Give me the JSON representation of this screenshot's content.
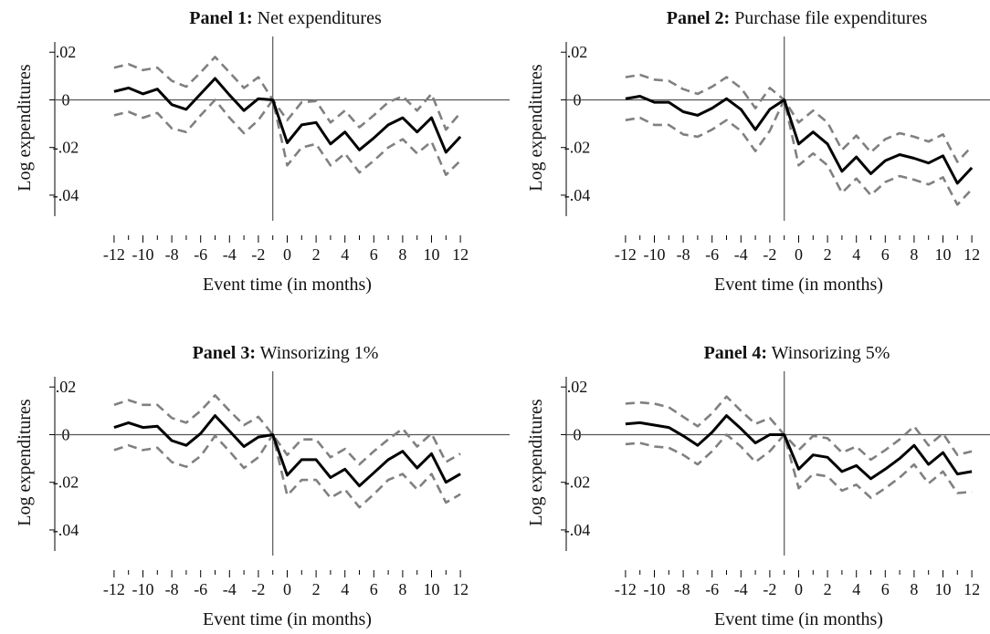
{
  "chart_data": [
    {
      "type": "line",
      "title_bold": "Panel 1:",
      "title_rest": "Net expenditures",
      "xlabel": "Event time (in months)",
      "ylabel": "Log expenditures",
      "x": [
        -12,
        -11,
        -10,
        -9,
        -8,
        -7,
        -6,
        -5,
        -4,
        -3,
        -2,
        -1,
        0,
        1,
        2,
        3,
        4,
        5,
        6,
        7,
        8,
        9,
        10,
        11,
        12
      ],
      "xticks": [
        -12,
        -10,
        -8,
        -6,
        -4,
        -2,
        0,
        2,
        4,
        6,
        8,
        10,
        12
      ],
      "xtick_labels": [
        "-12",
        "-10",
        "-8",
        "-6",
        "-4",
        "-2",
        "0",
        "2",
        "4",
        "6",
        "8",
        "10",
        "12"
      ],
      "yticks": [
        0.02,
        0,
        -0.02,
        -0.04
      ],
      "ytick_labels": [
        ".02",
        "0",
        "-.02",
        "-.04"
      ],
      "xlim": [
        -12.5,
        12.5
      ],
      "ylim": [
        -0.045,
        0.022
      ],
      "reference_lines": {
        "y": 0,
        "x": -1
      },
      "series": [
        {
          "role": "estimate",
          "color": "#000000",
          "style": "solid",
          "values": [
            0.0035,
            0.005,
            0.0025,
            0.0045,
            -0.002,
            -0.004,
            0.0025,
            0.009,
            0.002,
            -0.0045,
            0.0005,
            0,
            -0.018,
            -0.0105,
            -0.0095,
            -0.0185,
            -0.0135,
            -0.021,
            -0.016,
            -0.0105,
            -0.0075,
            -0.0135,
            -0.0075,
            -0.022,
            -0.0155
          ]
        },
        {
          "role": "upper_ci",
          "color": "#808080",
          "style": "dashed",
          "values": [
            0.0135,
            0.015,
            0.0125,
            0.0135,
            0.008,
            0.0055,
            0.0115,
            0.018,
            0.0115,
            0.005,
            0.0095,
            0,
            -0.0085,
            -0.001,
            -0.0005,
            -0.0095,
            -0.0045,
            -0.0115,
            -0.0065,
            -0.001,
            0.0015,
            -0.0045,
            0.0025,
            -0.0125,
            -0.0055
          ]
        },
        {
          "role": "lower_ci",
          "color": "#808080",
          "style": "dashed",
          "values": [
            -0.0065,
            -0.005,
            -0.0075,
            -0.0055,
            -0.012,
            -0.0135,
            -0.0065,
            0.0,
            -0.0075,
            -0.014,
            -0.0085,
            0,
            -0.0275,
            -0.02,
            -0.0185,
            -0.0275,
            -0.0225,
            -0.0305,
            -0.0255,
            -0.02,
            -0.0165,
            -0.0225,
            -0.0175,
            -0.0315,
            -0.0255
          ]
        }
      ]
    },
    {
      "type": "line",
      "title_bold": "Panel 2:",
      "title_rest": "Purchase file expenditures",
      "xlabel": "Event time (in months)",
      "ylabel": "Log expenditures",
      "x": [
        -12,
        -11,
        -10,
        -9,
        -8,
        -7,
        -6,
        -5,
        -4,
        -3,
        -2,
        -1,
        0,
        1,
        2,
        3,
        4,
        5,
        6,
        7,
        8,
        9,
        10,
        11,
        12
      ],
      "xticks": [
        -12,
        -10,
        -8,
        -6,
        -4,
        -2,
        0,
        2,
        4,
        6,
        8,
        10,
        12
      ],
      "xtick_labels": [
        "-12",
        "-10",
        "-8",
        "-6",
        "-4",
        "-2",
        "0",
        "2",
        "4",
        "6",
        "8",
        "10",
        "12"
      ],
      "yticks": [
        0.02,
        0,
        -0.02,
        -0.04
      ],
      "ytick_labels": [
        ".02",
        "0",
        "-.02",
        "-.04"
      ],
      "xlim": [
        -12.5,
        12.5
      ],
      "ylim": [
        -0.045,
        0.022
      ],
      "reference_lines": {
        "y": 0,
        "x": -1
      },
      "series": [
        {
          "role": "estimate",
          "color": "#000000",
          "style": "solid",
          "values": [
            0.0005,
            0.0015,
            -0.001,
            -0.001,
            -0.005,
            -0.0065,
            -0.0035,
            0.0005,
            -0.004,
            -0.0125,
            -0.004,
            0,
            -0.0185,
            -0.0135,
            -0.0185,
            -0.03,
            -0.024,
            -0.031,
            -0.0255,
            -0.023,
            -0.0245,
            -0.0265,
            -0.0235,
            -0.035,
            -0.0285
          ]
        },
        {
          "role": "upper_ci",
          "color": "#808080",
          "style": "dashed",
          "values": [
            0.0095,
            0.0105,
            0.0085,
            0.008,
            0.0045,
            0.0025,
            0.0055,
            0.0095,
            0.005,
            -0.0035,
            0.005,
            0,
            -0.0095,
            -0.0045,
            -0.0095,
            -0.021,
            -0.015,
            -0.022,
            -0.0165,
            -0.014,
            -0.0155,
            -0.0175,
            -0.0145,
            -0.026,
            -0.0195
          ]
        },
        {
          "role": "lower_ci",
          "color": "#808080",
          "style": "dashed",
          "values": [
            -0.0085,
            -0.0075,
            -0.0105,
            -0.0105,
            -0.0145,
            -0.0155,
            -0.0125,
            -0.0085,
            -0.013,
            -0.0215,
            -0.013,
            0,
            -0.0275,
            -0.0225,
            -0.0275,
            -0.039,
            -0.033,
            -0.04,
            -0.0345,
            -0.032,
            -0.0335,
            -0.0355,
            -0.0325,
            -0.044,
            -0.0375
          ]
        }
      ]
    },
    {
      "type": "line",
      "title_bold": "Panel 3:",
      "title_rest": "Winsorizing 1%",
      "xlabel": "Event time (in months)",
      "ylabel": "Log expenditures",
      "x": [
        -12,
        -11,
        -10,
        -9,
        -8,
        -7,
        -6,
        -5,
        -4,
        -3,
        -2,
        -1,
        0,
        1,
        2,
        3,
        4,
        5,
        6,
        7,
        8,
        9,
        10,
        11,
        12
      ],
      "xticks": [
        -12,
        -10,
        -8,
        -6,
        -4,
        -2,
        0,
        2,
        4,
        6,
        8,
        10,
        12
      ],
      "xtick_labels": [
        "-12",
        "-10",
        "-8",
        "-6",
        "-4",
        "-2",
        "0",
        "2",
        "4",
        "6",
        "8",
        "10",
        "12"
      ],
      "yticks": [
        0.02,
        0,
        -0.02,
        -0.04
      ],
      "ytick_labels": [
        ".02",
        "0",
        "-.02",
        "-.04"
      ],
      "xlim": [
        -12.5,
        12.5
      ],
      "ylim": [
        -0.045,
        0.022
      ],
      "reference_lines": {
        "y": 0,
        "x": -1
      },
      "series": [
        {
          "role": "estimate",
          "color": "#000000",
          "style": "solid",
          "values": [
            0.003,
            0.005,
            0.003,
            0.0035,
            -0.0025,
            -0.0045,
            0.0005,
            0.008,
            0.0015,
            -0.005,
            -0.001,
            0,
            -0.017,
            -0.0105,
            -0.0105,
            -0.018,
            -0.0145,
            -0.0215,
            -0.016,
            -0.0105,
            -0.007,
            -0.014,
            -0.008,
            -0.02,
            -0.0165
          ]
        },
        {
          "role": "upper_ci",
          "color": "#808080",
          "style": "dashed",
          "values": [
            0.0125,
            0.0145,
            0.0125,
            0.0125,
            0.007,
            0.005,
            0.01,
            0.0165,
            0.01,
            0.004,
            0.0075,
            0,
            -0.0085,
            -0.002,
            -0.002,
            -0.0095,
            -0.006,
            -0.0125,
            -0.007,
            -0.002,
            0.0025,
            -0.005,
            0.0005,
            -0.0115,
            -0.008
          ]
        },
        {
          "role": "lower_ci",
          "color": "#808080",
          "style": "dashed",
          "values": [
            -0.0065,
            -0.0045,
            -0.0065,
            -0.0055,
            -0.0115,
            -0.0135,
            -0.009,
            -0.0005,
            -0.007,
            -0.014,
            -0.0095,
            0,
            -0.0255,
            -0.019,
            -0.019,
            -0.0265,
            -0.023,
            -0.0305,
            -0.025,
            -0.019,
            -0.0165,
            -0.023,
            -0.0165,
            -0.0285,
            -0.025
          ]
        }
      ]
    },
    {
      "type": "line",
      "title_bold": "Panel 4:",
      "title_rest": "Winsorizing 5%",
      "xlabel": "Event time (in months)",
      "ylabel": "Log expenditures",
      "x": [
        -12,
        -11,
        -10,
        -9,
        -8,
        -7,
        -6,
        -5,
        -4,
        -3,
        -2,
        -1,
        0,
        1,
        2,
        3,
        4,
        5,
        6,
        7,
        8,
        9,
        10,
        11,
        12
      ],
      "xticks": [
        -12,
        -10,
        -8,
        -6,
        -4,
        -2,
        0,
        2,
        4,
        6,
        8,
        10,
        12
      ],
      "xtick_labels": [
        "-12",
        "-10",
        "-8",
        "-6",
        "-4",
        "-2",
        "0",
        "2",
        "4",
        "6",
        "8",
        "10",
        "12"
      ],
      "yticks": [
        0.02,
        0,
        -0.02,
        -0.04
      ],
      "ytick_labels": [
        ".02",
        "0",
        "-.02",
        "-.04"
      ],
      "xlim": [
        -12.5,
        12.5
      ],
      "ylim": [
        -0.045,
        0.022
      ],
      "reference_lines": {
        "y": 0,
        "x": -1
      },
      "series": [
        {
          "role": "estimate",
          "color": "#000000",
          "style": "solid",
          "values": [
            0.0045,
            0.005,
            0.004,
            0.003,
            -0.0005,
            -0.0045,
            0.001,
            0.008,
            0.0025,
            -0.0035,
            0,
            0,
            -0.0145,
            -0.0085,
            -0.0095,
            -0.0155,
            -0.013,
            -0.0185,
            -0.0145,
            -0.01,
            -0.0045,
            -0.0125,
            -0.0075,
            -0.0165,
            -0.0155
          ]
        },
        {
          "role": "upper_ci",
          "color": "#808080",
          "style": "dashed",
          "values": [
            0.013,
            0.0135,
            0.013,
            0.0115,
            0.0075,
            0.0035,
            0.009,
            0.016,
            0.01,
            0.0045,
            0.007,
            0,
            -0.0065,
            -0.0005,
            -0.0015,
            -0.0075,
            -0.005,
            -0.0105,
            -0.0065,
            -0.002,
            0.0035,
            -0.0045,
            0.0005,
            -0.0085,
            -0.007
          ]
        },
        {
          "role": "lower_ci",
          "color": "#808080",
          "style": "dashed",
          "values": [
            -0.004,
            -0.0035,
            -0.005,
            -0.0055,
            -0.0085,
            -0.0125,
            -0.007,
            0,
            -0.005,
            -0.0115,
            -0.007,
            0,
            -0.0225,
            -0.0165,
            -0.0175,
            -0.0235,
            -0.021,
            -0.0265,
            -0.0225,
            -0.018,
            -0.0125,
            -0.0205,
            -0.0155,
            -0.0245,
            -0.024
          ]
        }
      ]
    }
  ]
}
